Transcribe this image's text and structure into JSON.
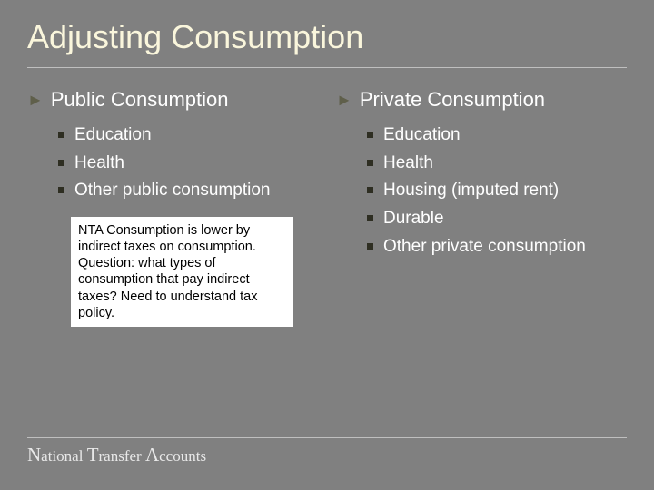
{
  "background_color": "#808080",
  "title_color": "#faf6dc",
  "text_color": "#ffffff",
  "bullet_arrow_color": "#5f5f4a",
  "bullet_square_color": "#2e2e22",
  "divider_color": "#bfbfbf",
  "note_bg_color": "#ffffff",
  "note_text_color": "#000000",
  "title": "Adjusting Consumption",
  "left": {
    "heading": "Public Consumption",
    "items": [
      "Education",
      "Health",
      "Other public consumption"
    ],
    "note": "NTA Consumption is lower by indirect taxes on consumption. Question: what types of consumption that pay indirect taxes? Need to understand tax policy."
  },
  "right": {
    "heading": "Private Consumption",
    "items": [
      "Education",
      "Health",
      "Housing (imputed rent)",
      "Durable",
      "Other private consumption"
    ]
  },
  "footer": {
    "word1_cap": "N",
    "word1_rest": "ational",
    "word2_cap": "T",
    "word2_rest": "ransfer",
    "word3_cap": "A",
    "word3_rest": "ccounts"
  }
}
